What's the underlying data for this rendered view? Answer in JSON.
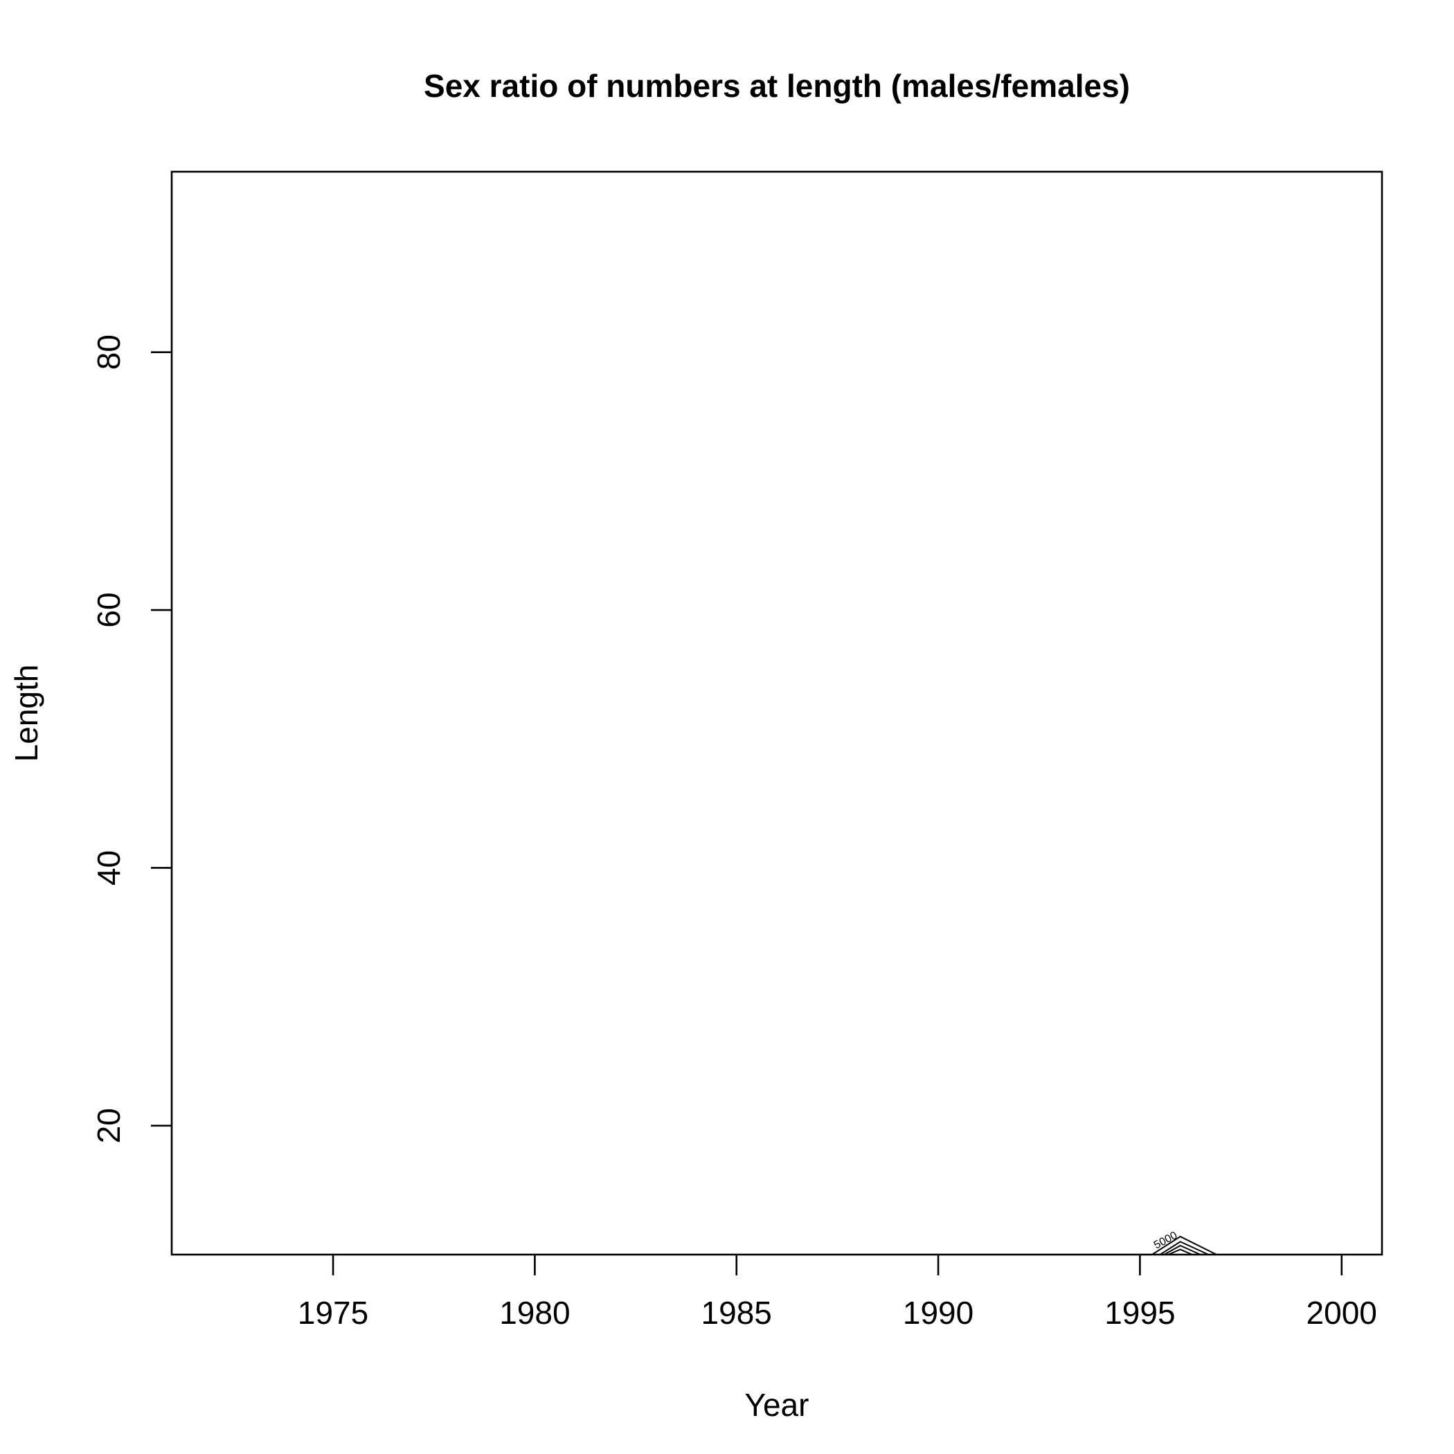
{
  "chart_data": {
    "type": "contour",
    "title": "Sex ratio of numbers at length (males/females)",
    "xlabel": "Year",
    "ylabel": "Length",
    "xlim": [
      1971,
      2001
    ],
    "ylim": [
      10,
      94
    ],
    "xticks": [
      1975,
      1980,
      1985,
      1990,
      1995,
      2000
    ],
    "yticks": [
      20,
      40,
      60,
      80
    ],
    "grid": false,
    "legend": "none",
    "contours": [
      {
        "level": "5000",
        "label": "5000",
        "points": [
          [
            1995.3,
            10
          ],
          [
            1996.0,
            11.4
          ],
          [
            1996.9,
            10
          ]
        ]
      },
      {
        "level": "",
        "label": "",
        "points": [
          [
            1995.5,
            10
          ],
          [
            1996.0,
            11.0
          ],
          [
            1996.7,
            10
          ]
        ]
      },
      {
        "level": "",
        "label": "",
        "points": [
          [
            1995.6,
            10
          ],
          [
            1996.0,
            10.7
          ],
          [
            1996.5,
            10
          ]
        ]
      },
      {
        "level": "",
        "label": "",
        "points": [
          [
            1995.7,
            10
          ],
          [
            1996.0,
            10.4
          ],
          [
            1996.3,
            10
          ]
        ]
      }
    ]
  }
}
